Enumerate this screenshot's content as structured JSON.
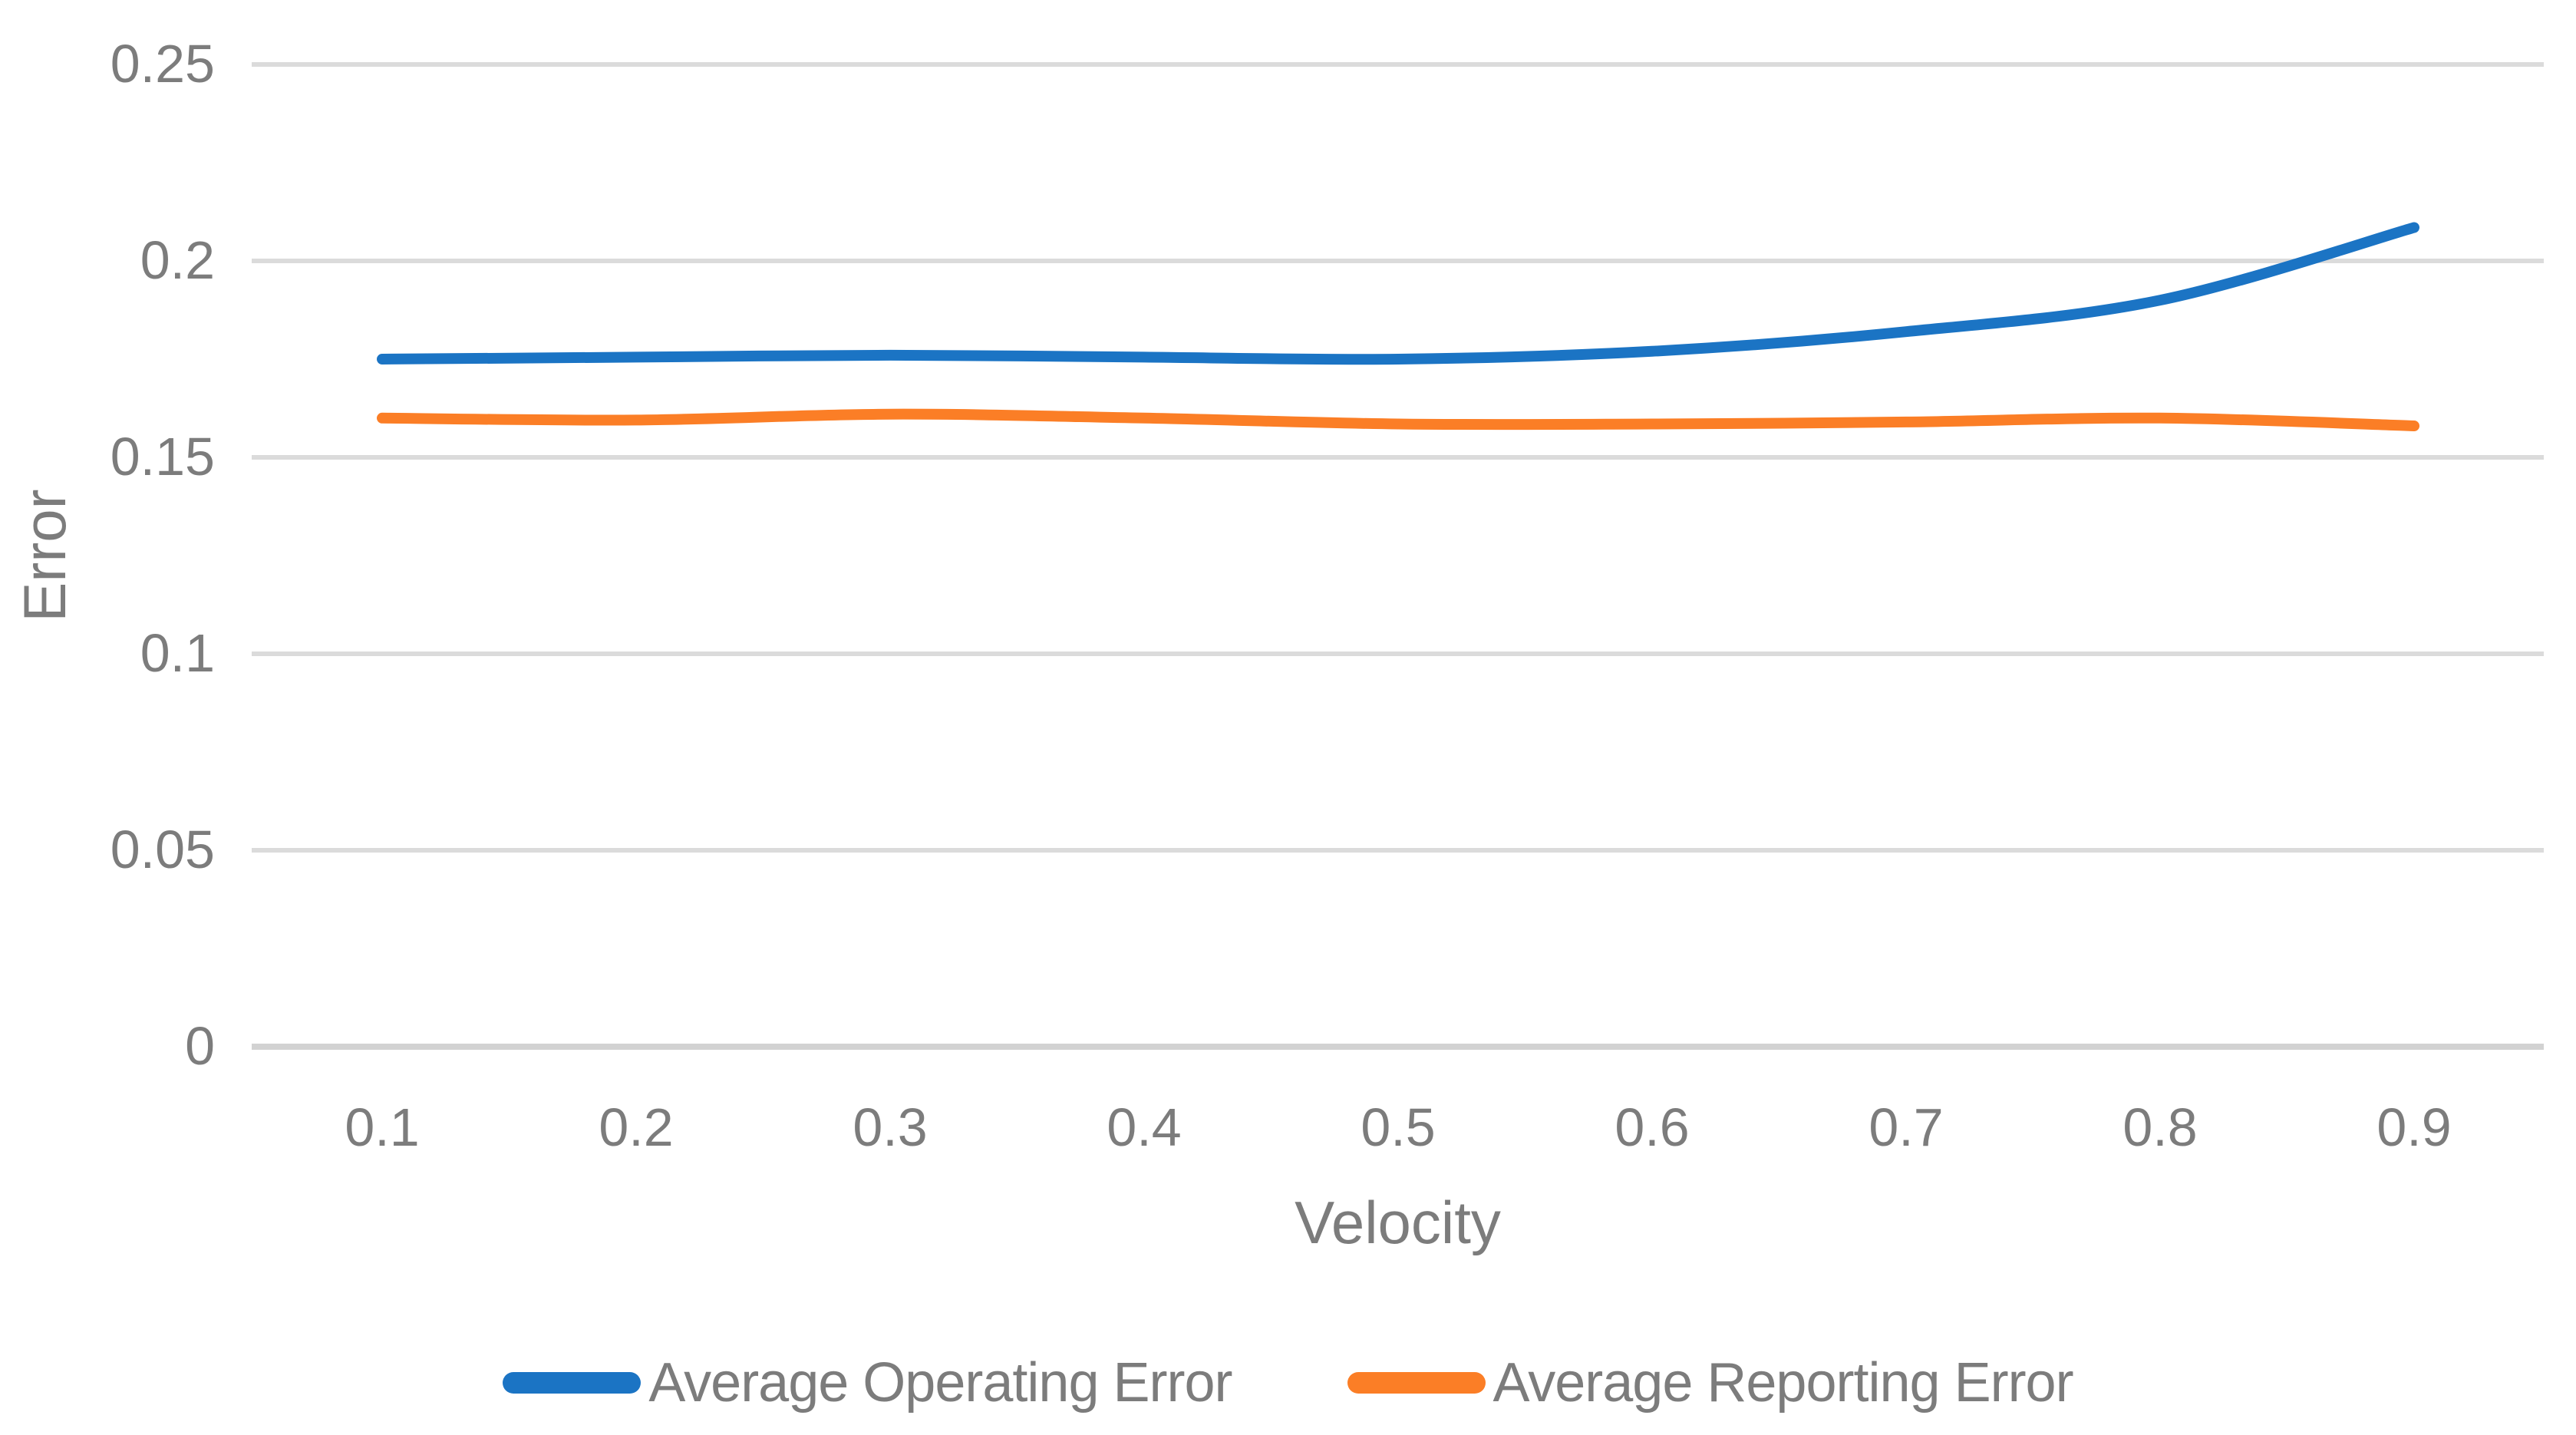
{
  "chart_data": {
    "type": "line",
    "title": "",
    "xlabel": "Velocity",
    "ylabel": "Error",
    "x": [
      0.1,
      0.2,
      0.3,
      0.4,
      0.5,
      0.6,
      0.7,
      0.8,
      0.9
    ],
    "x_ticks": [
      "0.1",
      "0.2",
      "0.3",
      "0.4",
      "0.5",
      "0.6",
      "0.7",
      "0.8",
      "0.9"
    ],
    "y_ticks": [
      "0",
      "0.05",
      "0.1",
      "0.15",
      "0.2",
      "0.25"
    ],
    "ylim": [
      0,
      0.25
    ],
    "grid": true,
    "legend_position": "bottom",
    "series": [
      {
        "name": "Average Operating Error",
        "color": "#1B74C4",
        "values": [
          0.175,
          0.1755,
          0.176,
          0.1755,
          0.175,
          0.177,
          0.182,
          0.19,
          0.2085
        ]
      },
      {
        "name": "Average Reporting Error",
        "color": "#FB7E26",
        "values": [
          0.16,
          0.1595,
          0.161,
          0.16,
          0.1585,
          0.1585,
          0.159,
          0.16,
          0.158
        ]
      }
    ],
    "colors": {
      "grid_line": "#DBDBDB",
      "axis_line": "#D2D2D2",
      "label_text": "#7C7C7C",
      "background": "#FFFFFF"
    }
  }
}
